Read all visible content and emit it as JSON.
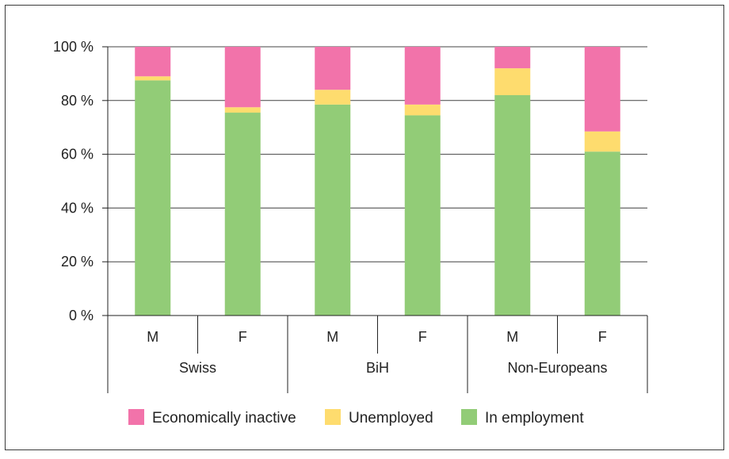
{
  "chart_data": {
    "type": "bar",
    "stacked": true,
    "categories": [
      "M",
      "F",
      "M",
      "F",
      "M",
      "F"
    ],
    "groups": [
      {
        "label": "Swiss",
        "categories": [
          "M",
          "F"
        ]
      },
      {
        "label": "BiH",
        "categories": [
          "M",
          "F"
        ]
      },
      {
        "label": "Non-Europeans",
        "categories": [
          "M",
          "F"
        ]
      }
    ],
    "series": [
      {
        "name": "In employment",
        "color": "#92cc77",
        "values": [
          87.5,
          75.5,
          78.5,
          74.5,
          82,
          61
        ]
      },
      {
        "name": "Unemployed",
        "color": "#fedc6e",
        "values": [
          1.5,
          2,
          5.5,
          4,
          10,
          7.5
        ]
      },
      {
        "name": "Economically inactive",
        "color": "#f273aa",
        "values": [
          11,
          22.5,
          16,
          21.5,
          8,
          31.5
        ]
      }
    ],
    "y_ticks": [
      "0 %",
      "20 %",
      "40 %",
      "60 %",
      "80 %",
      "100 %"
    ],
    "ylim": [
      0,
      100
    ],
    "grid": true,
    "legend_order": [
      "Economically inactive",
      "Unemployed",
      "In employment"
    ],
    "legend_position": "bottom"
  }
}
